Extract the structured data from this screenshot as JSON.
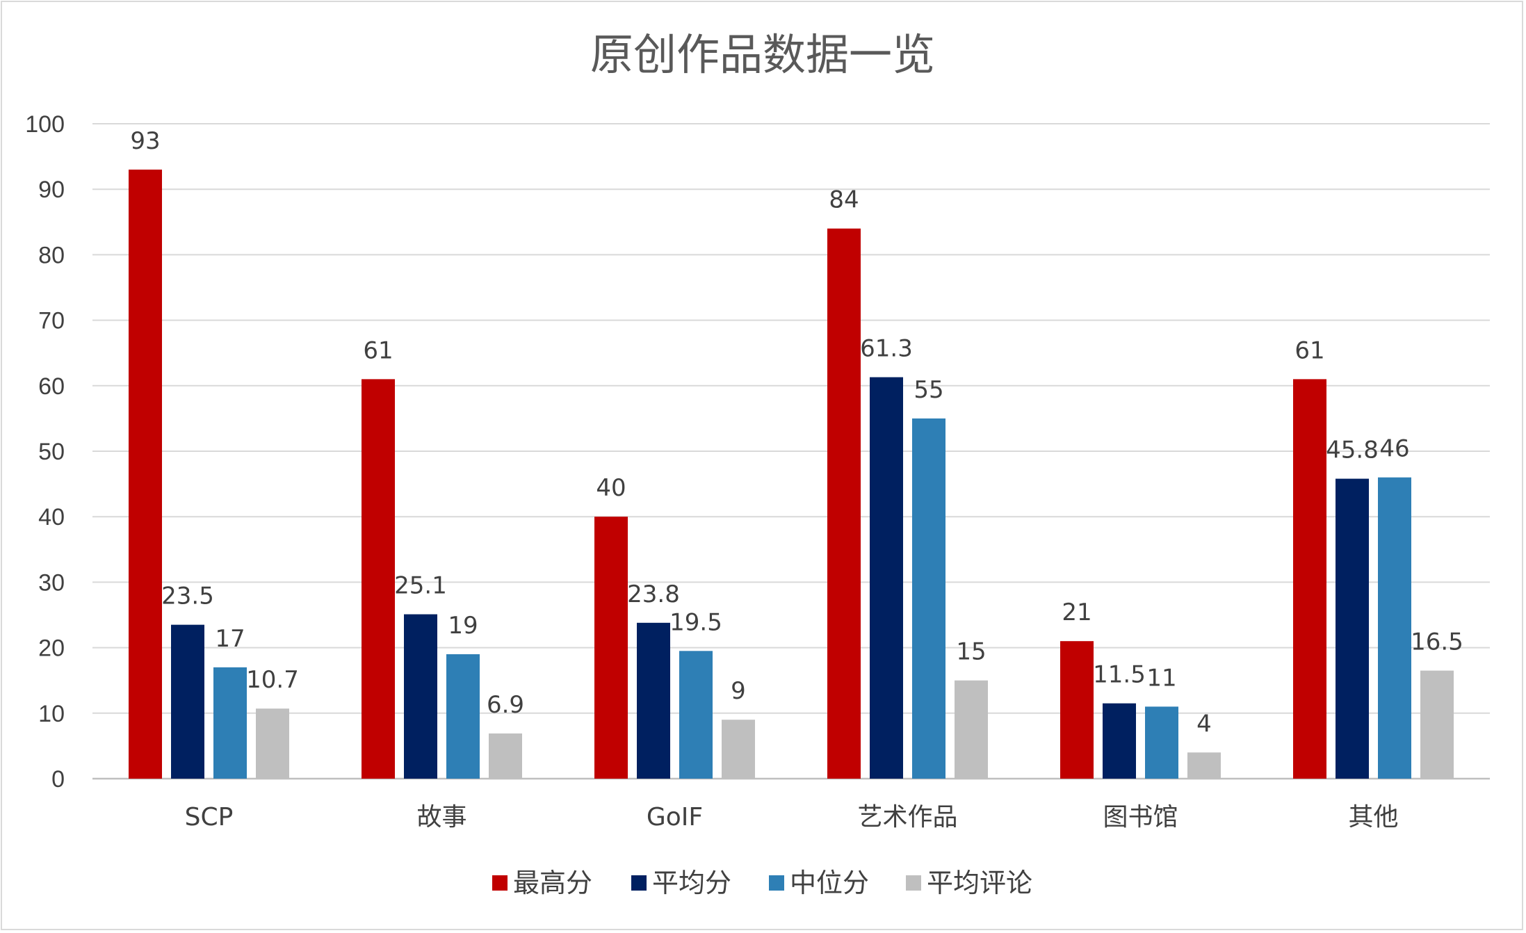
{
  "chart_data": {
    "type": "bar",
    "title": "原创作品数据一览",
    "categories": [
      "SCP",
      "故事",
      "GoIF",
      "艺术作品",
      "图书馆",
      "其他"
    ],
    "series": [
      {
        "name": "最高分",
        "color": "#c00000",
        "values": [
          93,
          61,
          40,
          84,
          21,
          61
        ],
        "labels": [
          "93",
          "61",
          "40",
          "84",
          "21",
          "61"
        ]
      },
      {
        "name": "平均分",
        "color": "#002060",
        "values": [
          23.5,
          25.1,
          23.8,
          61.3,
          11.5,
          45.8
        ],
        "labels": [
          "23.5",
          "25.1",
          "23.8",
          "61.3",
          "11.5",
          "45.8"
        ]
      },
      {
        "name": "中位分",
        "color": "#2e7fb5",
        "values": [
          17,
          19,
          19.5,
          55,
          11,
          46
        ],
        "labels": [
          "17",
          "19",
          "19.5",
          "55",
          "11",
          "46"
        ]
      },
      {
        "name": "平均评论",
        "color": "#bfbfbf",
        "values": [
          10.7,
          6.9,
          9,
          15,
          4,
          16.5
        ],
        "labels": [
          "10.7",
          "6.9",
          "9",
          "15",
          "4",
          "16.5"
        ]
      }
    ],
    "ylim": [
      0,
      100
    ],
    "yticks": [
      "0",
      "10",
      "20",
      "30",
      "40",
      "50",
      "60",
      "70",
      "80",
      "90",
      "100"
    ],
    "grid": true,
    "legend_position": "bottom"
  }
}
